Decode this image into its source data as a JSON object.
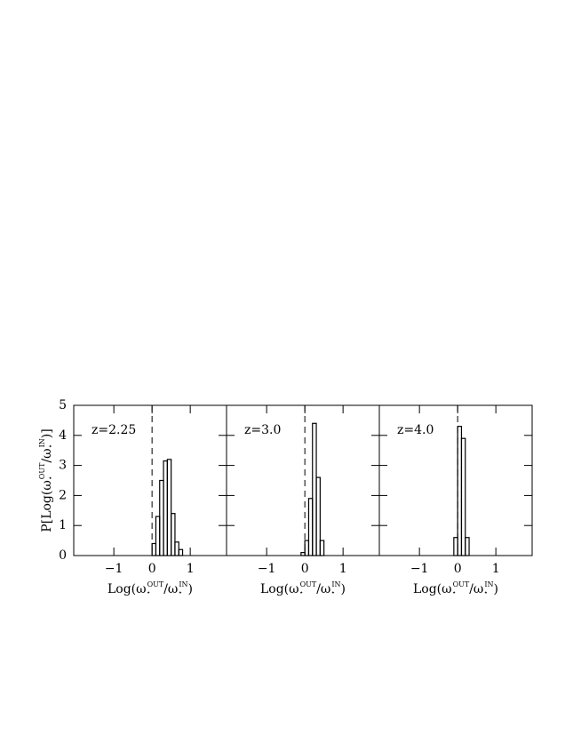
{
  "chart_data": [
    {
      "type": "histogram",
      "annotation": "z=2.25",
      "xlabel": [
        "Log(ω",
        "⋆",
        "OUT",
        "/ω",
        "⋆",
        "IN",
        ")"
      ],
      "ylabel": [
        "P[Log(ω",
        "⋆",
        "OUT",
        "/ω",
        "⋆",
        "IN",
        ")]"
      ],
      "bins": [
        0.0,
        0.1,
        0.2,
        0.3,
        0.4,
        0.5,
        0.6,
        0.7,
        0.8
      ],
      "values": [
        0.4,
        1.3,
        2.5,
        3.15,
        3.2,
        1.4,
        0.45,
        0.2
      ],
      "xlim": [
        -2.05,
        1.95
      ],
      "ylim": [
        0,
        5
      ],
      "xticks": [
        -1,
        0,
        1
      ],
      "yticks": [
        0,
        1,
        2,
        3,
        4,
        5
      ],
      "reference_line": 0,
      "color": "#000000"
    },
    {
      "type": "histogram",
      "annotation": "z=3.0",
      "xlabel": [
        "Log(ω",
        "⋆",
        "OUT",
        "/ω",
        "⋆",
        "IN",
        ")"
      ],
      "bins": [
        -0.1,
        0.0,
        0.1,
        0.2,
        0.3,
        0.4,
        0.5
      ],
      "values": [
        0.1,
        0.5,
        1.9,
        4.4,
        2.6,
        0.5
      ],
      "xlim": [
        -2.05,
        1.95
      ],
      "ylim": [
        0,
        5
      ],
      "xticks": [
        -1,
        0,
        1
      ],
      "yticks": [
        0,
        1,
        2,
        3,
        4,
        5
      ],
      "reference_line": 0,
      "color": "#000000"
    },
    {
      "type": "histogram",
      "annotation": "z=4.0",
      "xlabel": [
        "Log(ω",
        "⋆",
        "OUT",
        "/ω",
        "⋆",
        "IN",
        ")"
      ],
      "bins": [
        -0.1,
        0.0,
        0.1,
        0.2,
        0.3
      ],
      "values": [
        0.6,
        4.3,
        3.9,
        0.6
      ],
      "xlim": [
        -2.05,
        1.95
      ],
      "ylim": [
        0,
        5
      ],
      "xticks": [
        -1,
        0,
        1
      ],
      "yticks": [
        0,
        1,
        2,
        3,
        4,
        5
      ],
      "reference_line": 0,
      "color": "#000000"
    }
  ]
}
